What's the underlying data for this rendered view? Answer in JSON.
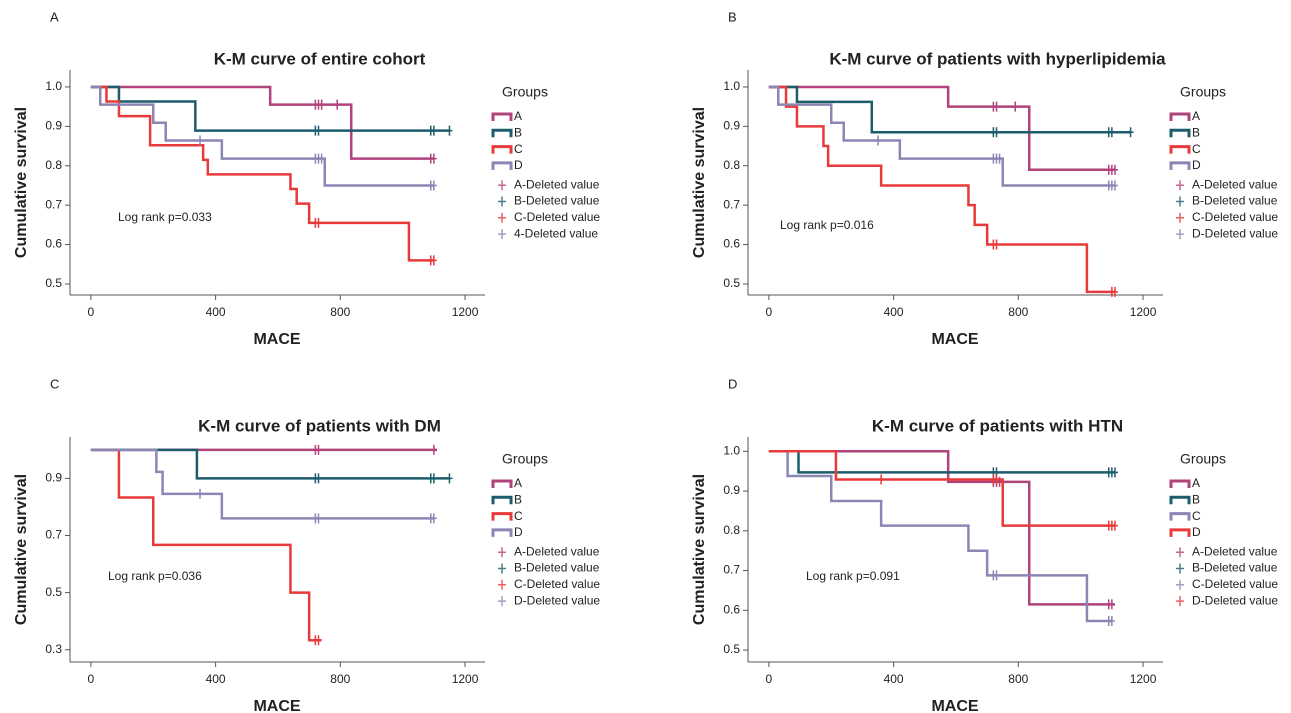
{
  "chart_data": [
    {
      "type": "step",
      "panel": "A",
      "title": "K-M curve of entire cohort",
      "x_label": "MACE",
      "y_label": "Cumulative survival",
      "legend_title": "Groups",
      "annotation": "Log rank p=0.033",
      "xlim": [
        -67,
        1264
      ],
      "ylim": [
        0.472,
        1.043
      ],
      "xticks": [
        0,
        400,
        800,
        1200
      ],
      "yticks": [
        0.5,
        0.6,
        0.7,
        0.8,
        0.9,
        {
          "value": 1,
          "label": "1.0"
        }
      ],
      "series": [
        {
          "name": "A",
          "color": "#b1437c",
          "x": [
            0,
            575,
            835,
            1100
          ],
          "values": [
            1,
            0.955,
            0.818,
            0.818
          ],
          "censor_name": "A-Deleted value",
          "censor_x": [
            720,
            730,
            740,
            790,
            1090,
            1100
          ],
          "censor_values": [
            0.955,
            0.955,
            0.955,
            0.955,
            0.818,
            0.818
          ]
        },
        {
          "name": "B",
          "color": "#1d5c6b",
          "x": [
            0,
            90,
            335,
            1150
          ],
          "values": [
            1,
            0.963,
            0.889,
            0.889
          ],
          "censor_name": "B-Deleted value",
          "censor_x": [
            720,
            730,
            1090,
            1100,
            1150
          ],
          "censor_values": [
            0.889,
            0.889,
            0.889,
            0.889,
            0.889
          ]
        },
        {
          "name": "C",
          "color": "#e83a3a",
          "x": [
            0,
            50,
            90,
            190,
            360,
            375,
            640,
            660,
            700,
            1020,
            1100
          ],
          "values": [
            1,
            0.963,
            0.926,
            0.852,
            0.815,
            0.778,
            0.741,
            0.704,
            0.655,
            0.56,
            0.56
          ],
          "censor_name": "C-Deleted value",
          "censor_x": [
            720,
            730,
            1090,
            1100
          ],
          "censor_values": [
            0.655,
            0.655,
            0.56,
            0.56
          ]
        },
        {
          "name": "D",
          "color": "#8b87b5",
          "x": [
            0,
            30,
            200,
            240,
            420,
            750,
            1100
          ],
          "values": [
            1,
            0.955,
            0.909,
            0.864,
            0.818,
            0.75,
            0.75
          ],
          "censor_name": "4-Deleted value",
          "censor_x": [
            350,
            720,
            730,
            740,
            1090,
            1100
          ],
          "censor_values": [
            0.864,
            0.818,
            0.818,
            0.818,
            0.75,
            0.75
          ]
        }
      ]
    },
    {
      "type": "step",
      "panel": "B",
      "title": "K-M curve of patients with hyperlipidemia",
      "x_label": "MACE",
      "y_label": "Cumulative survival",
      "legend_title": "Groups",
      "annotation": "Log rank p=0.016",
      "xlim": [
        -67,
        1264
      ],
      "ylim": [
        0.472,
        1.043
      ],
      "xticks": [
        0,
        400,
        800,
        1200
      ],
      "yticks": [
        0.5,
        0.6,
        0.7,
        0.8,
        0.9,
        {
          "value": 1,
          "label": "1.0"
        }
      ],
      "series": [
        {
          "name": "A",
          "color": "#b1437c",
          "x": [
            0,
            575,
            835,
            1110
          ],
          "values": [
            1,
            0.95,
            0.79,
            0.79
          ],
          "censor_name": "A-Deleted value",
          "censor_x": [
            720,
            730,
            790,
            1090,
            1100,
            1110
          ],
          "censor_values": [
            0.95,
            0.95,
            0.95,
            0.79,
            0.79,
            0.79
          ]
        },
        {
          "name": "B",
          "color": "#1d5c6b",
          "x": [
            0,
            90,
            330,
            1160
          ],
          "values": [
            1,
            0.962,
            0.885,
            0.885
          ],
          "censor_name": "B-Deleted value",
          "censor_x": [
            720,
            730,
            1090,
            1100,
            1160
          ],
          "censor_values": [
            0.885,
            0.885,
            0.885,
            0.885,
            0.885
          ]
        },
        {
          "name": "C",
          "color": "#e83a3a",
          "x": [
            0,
            55,
            90,
            175,
            190,
            360,
            640,
            660,
            700,
            1020,
            1110
          ],
          "values": [
            1,
            0.95,
            0.9,
            0.85,
            0.8,
            0.75,
            0.7,
            0.65,
            0.6,
            0.48,
            0.48
          ],
          "censor_name": "C-Deleted value",
          "censor_x": [
            720,
            730,
            1100,
            1110
          ],
          "censor_values": [
            0.6,
            0.6,
            0.48,
            0.48
          ]
        },
        {
          "name": "D",
          "color": "#8b87b5",
          "x": [
            0,
            30,
            200,
            240,
            420,
            750,
            1110
          ],
          "values": [
            1,
            0.955,
            0.909,
            0.864,
            0.818,
            0.75,
            0.75
          ],
          "censor_name": "D-Deleted value",
          "censor_x": [
            350,
            720,
            730,
            740,
            1090,
            1100,
            1110
          ],
          "censor_values": [
            0.864,
            0.818,
            0.818,
            0.818,
            0.75,
            0.75,
            0.75
          ]
        }
      ]
    },
    {
      "type": "step",
      "panel": "C",
      "title": "K-M curve of patients with DM",
      "x_label": "MACE",
      "y_label": "Cumulative survival",
      "legend_title": "Groups",
      "annotation": "Log rank p=0.036",
      "xlim": [
        -67,
        1264
      ],
      "ylim": [
        0.257,
        1.045
      ],
      "xticks": [
        0,
        400,
        800,
        1200
      ],
      "yticks": [
        0.3,
        0.5,
        0.7,
        0.9
      ],
      "series": [
        {
          "name": "A",
          "color": "#b1437c",
          "x": [
            0,
            1110
          ],
          "values": [
            1,
            1
          ],
          "censor_name": "A-Deleted value",
          "censor_x": [
            720,
            730,
            1100
          ],
          "censor_values": [
            1,
            1,
            1
          ]
        },
        {
          "name": "B",
          "color": "#1d5c6b",
          "x": [
            0,
            340,
            1150
          ],
          "values": [
            1,
            0.9,
            0.9
          ],
          "censor_name": "B-Deleted value",
          "censor_x": [
            720,
            730,
            1090,
            1100,
            1150
          ],
          "censor_values": [
            0.9,
            0.9,
            0.9,
            0.9,
            0.9
          ]
        },
        {
          "name": "C",
          "color": "#e83a3a",
          "x": [
            0,
            90,
            200,
            640,
            700,
            740
          ],
          "values": [
            1,
            0.833,
            0.667,
            0.5,
            0.333,
            0.333
          ],
          "censor_name": "C-Deleted value",
          "censor_x": [
            720,
            730
          ],
          "censor_values": [
            0.333,
            0.333
          ]
        },
        {
          "name": "D",
          "color": "#8b87b5",
          "x": [
            0,
            210,
            230,
            420,
            1100
          ],
          "values": [
            1,
            0.923,
            0.846,
            0.76,
            0.76
          ],
          "censor_name": "D-Deleted value",
          "censor_x": [
            350,
            720,
            730,
            1090,
            1100
          ],
          "censor_values": [
            0.846,
            0.76,
            0.76,
            0.76,
            0.76
          ]
        }
      ]
    },
    {
      "type": "step",
      "panel": "D",
      "title": "K-M curve of patients with HTN",
      "x_label": "MACE",
      "y_label": "Cumulative survival",
      "legend_title": "Groups",
      "annotation": "Log rank p=0.091",
      "xlim": [
        -67,
        1264
      ],
      "ylim": [
        0.47,
        1.036
      ],
      "xticks": [
        0,
        400,
        800,
        1200
      ],
      "yticks": [
        0.5,
        0.6,
        0.7,
        0.8,
        0.9,
        {
          "value": 1,
          "label": "1.0"
        }
      ],
      "series": [
        {
          "name": "A",
          "color": "#b1437c",
          "x": [
            0,
            575,
            835,
            1110
          ],
          "values": [
            1,
            0.923,
            0.615,
            0.615
          ],
          "censor_name": "A-Deleted value",
          "censor_x": [
            720,
            730,
            740,
            1090,
            1100
          ],
          "censor_values": [
            0.923,
            0.923,
            0.923,
            0.615,
            0.615
          ]
        },
        {
          "name": "B",
          "color": "#1d5c6b",
          "x": [
            0,
            95,
            1110
          ],
          "values": [
            1,
            0.947,
            0.947
          ],
          "censor_name": "B-Deleted value",
          "censor_x": [
            720,
            730,
            1090,
            1100,
            1110
          ],
          "censor_values": [
            0.947,
            0.947,
            0.947,
            0.947,
            0.947
          ]
        },
        {
          "name": "C",
          "color": "#8b87b5",
          "x": [
            0,
            60,
            200,
            360,
            640,
            700,
            1020,
            1100
          ],
          "values": [
            1,
            0.938,
            0.875,
            0.813,
            0.75,
            0.688,
            0.573,
            0.573
          ],
          "censor_name": "C-Deleted value",
          "censor_x": [
            720,
            730,
            1090,
            1100
          ],
          "censor_values": [
            0.688,
            0.688,
            0.573,
            0.573
          ]
        },
        {
          "name": "D",
          "color": "#e83a3a",
          "x": [
            0,
            215,
            750,
            1110
          ],
          "values": [
            1,
            0.929,
            0.813,
            0.813
          ],
          "censor_name": "D-Deleted value",
          "censor_x": [
            360,
            720,
            730,
            1090,
            1100,
            1110
          ],
          "censor_values": [
            0.929,
            0.929,
            0.929,
            0.813,
            0.813,
            0.813
          ]
        }
      ]
    }
  ]
}
